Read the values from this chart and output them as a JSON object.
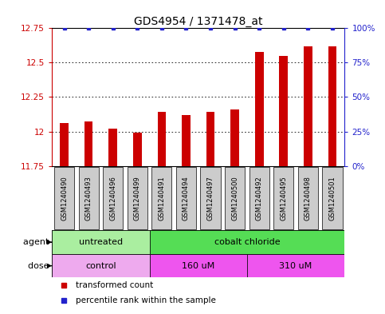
{
  "title": "GDS4954 / 1371478_at",
  "samples": [
    "GSM1240490",
    "GSM1240493",
    "GSM1240496",
    "GSM1240499",
    "GSM1240491",
    "GSM1240494",
    "GSM1240497",
    "GSM1240500",
    "GSM1240492",
    "GSM1240495",
    "GSM1240498",
    "GSM1240501"
  ],
  "bar_values": [
    12.06,
    12.07,
    12.02,
    11.99,
    12.14,
    12.12,
    12.14,
    12.16,
    12.58,
    12.55,
    12.62,
    12.62
  ],
  "dot_values": [
    100,
    100,
    100,
    100,
    100,
    100,
    100,
    100,
    100,
    100,
    100,
    100
  ],
  "ylim_left": [
    11.75,
    12.75
  ],
  "ylim_right": [
    0,
    100
  ],
  "yticks_left": [
    11.75,
    12.0,
    12.25,
    12.5,
    12.75
  ],
  "yticks_right": [
    0,
    25,
    50,
    75,
    100
  ],
  "ytick_labels_right": [
    "0%",
    "25%",
    "50%",
    "75%",
    "100%"
  ],
  "ytick_labels_left": [
    "11.75",
    "12",
    "12.25",
    "12.5",
    "12.75"
  ],
  "bar_color": "#cc0000",
  "dot_color": "#2222cc",
  "bar_bottom": 11.75,
  "agent_groups": [
    {
      "label": "untreated",
      "start": 0,
      "end": 4,
      "color": "#aaeea0"
    },
    {
      "label": "cobalt chloride",
      "start": 4,
      "end": 12,
      "color": "#55dd55"
    }
  ],
  "dose_groups": [
    {
      "label": "control",
      "start": 0,
      "end": 4,
      "color": "#eeaaee"
    },
    {
      "label": "160 uM",
      "start": 4,
      "end": 8,
      "color": "#ee55ee"
    },
    {
      "label": "310 uM",
      "start": 8,
      "end": 12,
      "color": "#ee55ee"
    }
  ],
  "legend_items": [
    {
      "label": "transformed count",
      "color": "#cc0000"
    },
    {
      "label": "percentile rank within the sample",
      "color": "#2222cc"
    }
  ],
  "background_color": "#ffffff",
  "title_fontsize": 10,
  "tick_fontsize": 7.5,
  "label_fontsize": 8,
  "sample_label_fontsize": 6,
  "sample_box_color": "#cccccc",
  "spine_color_left": "#cc0000",
  "spine_color_right": "#2222cc"
}
